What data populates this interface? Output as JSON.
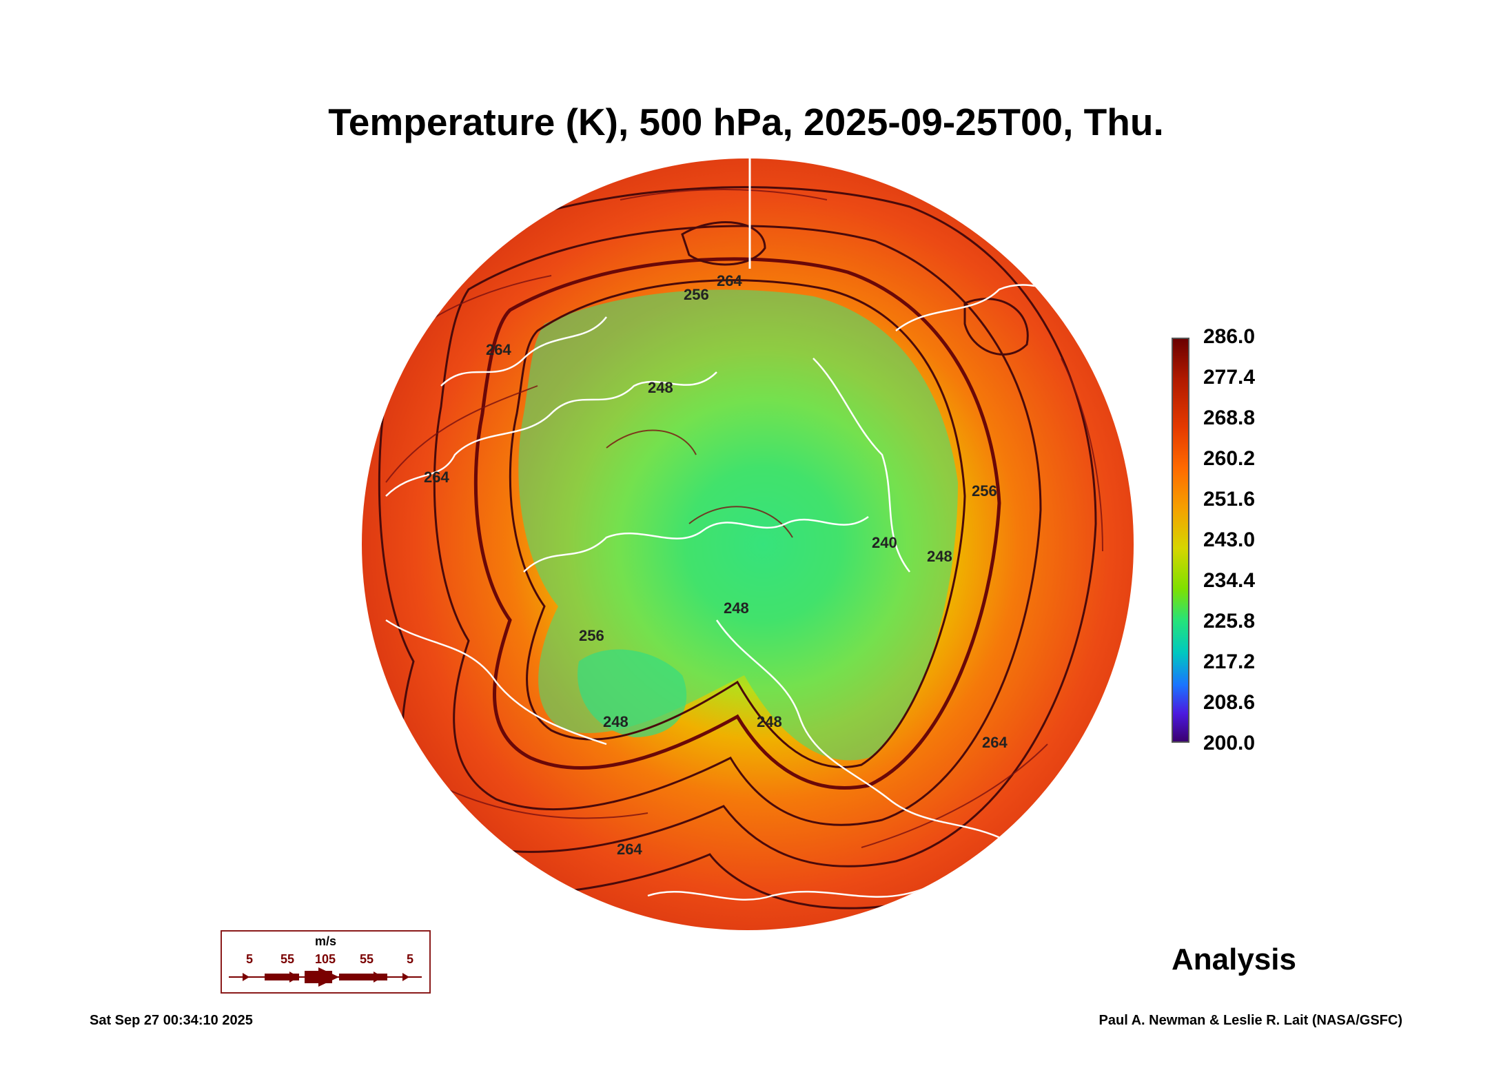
{
  "title": "Temperature (K), 500 hPa, 2025-09-25T00, Thu.",
  "colorbar": {
    "labels": [
      "286.0",
      "277.4",
      "268.8",
      "260.2",
      "251.6",
      "243.0",
      "234.4",
      "225.8",
      "217.2",
      "208.6",
      "200.0"
    ],
    "min": 200.0,
    "max": 286.0
  },
  "contour_labels": [
    "264",
    "256",
    "264",
    "248",
    "264",
    "240",
    "248",
    "256",
    "248",
    "264",
    "256",
    "264",
    "248",
    "248"
  ],
  "wind_key": {
    "unit": "m/s",
    "labels": [
      "5",
      "55",
      "105",
      "55",
      "5"
    ]
  },
  "product": "Analysis",
  "timestamp": "Sat Sep 27 00:34:10 2025",
  "credit": "Paul A. Newman & Leslie R. Lait (NASA/GSFC)",
  "colors": {
    "warm": "#e8431a",
    "cold": "#30e070",
    "coast": "#ffffff",
    "contour": "#4a0a0a"
  }
}
